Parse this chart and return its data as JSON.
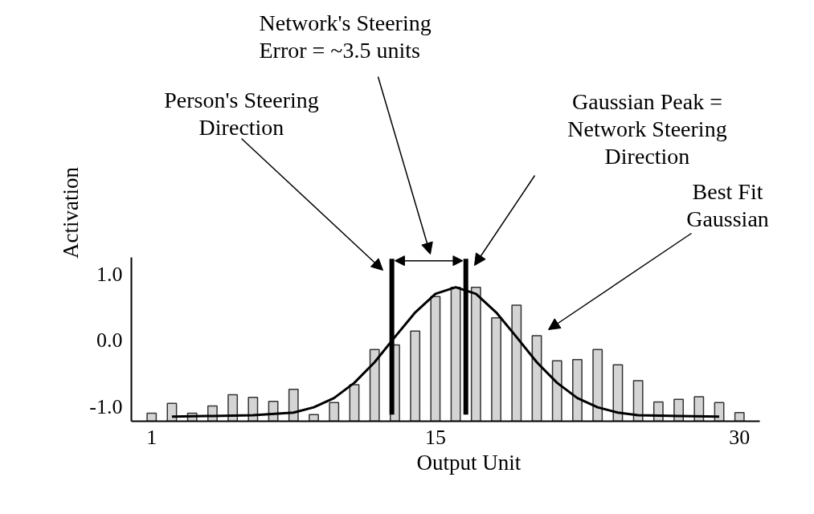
{
  "chart_data": {
    "type": "bar",
    "xlabel": "Output Unit",
    "ylabel": "Activation",
    "x": [
      1,
      2,
      3,
      4,
      5,
      6,
      7,
      8,
      9,
      10,
      11,
      12,
      13,
      14,
      15,
      16,
      17,
      18,
      19,
      20,
      21,
      22,
      23,
      24,
      25,
      26,
      27,
      28,
      29,
      30
    ],
    "series": [
      {
        "color": "#d4d4d4",
        "base": [
          -1.22,
          -1.22,
          -1.22,
          -1.22,
          -1.22,
          -1.22,
          -1.22,
          -1.22,
          -1.22,
          -1.22,
          -1.22,
          -1.22,
          -1.22,
          -1.22,
          -1.22,
          -1.22,
          -1.22,
          -1.22,
          -1.22,
          -1.22,
          -1.22,
          -1.22,
          -1.22,
          -1.22,
          -1.22,
          -1.22,
          -1.22,
          -1.22,
          -1.22,
          -1.22
        ],
        "values": [
          0.12,
          0.27,
          0.12,
          0.23,
          0.4,
          0.36,
          0.3,
          0.48,
          0.1,
          0.28,
          0.55,
          1.08,
          1.15,
          1.36,
          1.88,
          2.02,
          2.02,
          1.56,
          1.75,
          1.29,
          0.91,
          0.93,
          1.08,
          0.85,
          0.61,
          0.29,
          0.33,
          0.37,
          0.28,
          0.13
        ]
      },
      {
        "type": "line",
        "color": "#000000",
        "x": [
          2,
          4,
          6,
          8,
          9,
          10,
          11,
          12,
          13,
          14,
          15,
          16,
          17,
          18,
          19,
          20,
          21,
          22,
          23,
          24,
          25,
          27,
          29
        ],
        "values": [
          -1.15,
          -1.14,
          -1.13,
          -1.09,
          -1.01,
          -0.87,
          -0.64,
          -0.33,
          0.05,
          0.42,
          0.7,
          0.8,
          0.7,
          0.42,
          0.05,
          -0.33,
          -0.64,
          -0.87,
          -1.01,
          -1.09,
          -1.13,
          -1.14,
          -1.15
        ]
      }
    ],
    "xlim": [
      0,
      31
    ],
    "xticks": [
      1,
      15,
      30
    ],
    "ylim": [
      -1.22,
      1.25
    ],
    "yticks": [
      {
        "value": -1,
        "label": "-1.0"
      },
      {
        "value": 0,
        "label": "0.0"
      },
      {
        "value": 1,
        "label": "1.0"
      }
    ],
    "ref_lines": [
      {
        "axis": "x",
        "value": 12.85,
        "color": "#000000"
      },
      {
        "axis": "x",
        "value": 16.5,
        "color": "#000000"
      }
    ],
    "annotations": [
      "Network's Steering\nError = ~3.5 units",
      "Person's Steering\nDirection",
      "Gaussian Peak =\nNetwork Steering\nDirection",
      "Best Fit\nGaussian"
    ],
    "grid": false
  }
}
